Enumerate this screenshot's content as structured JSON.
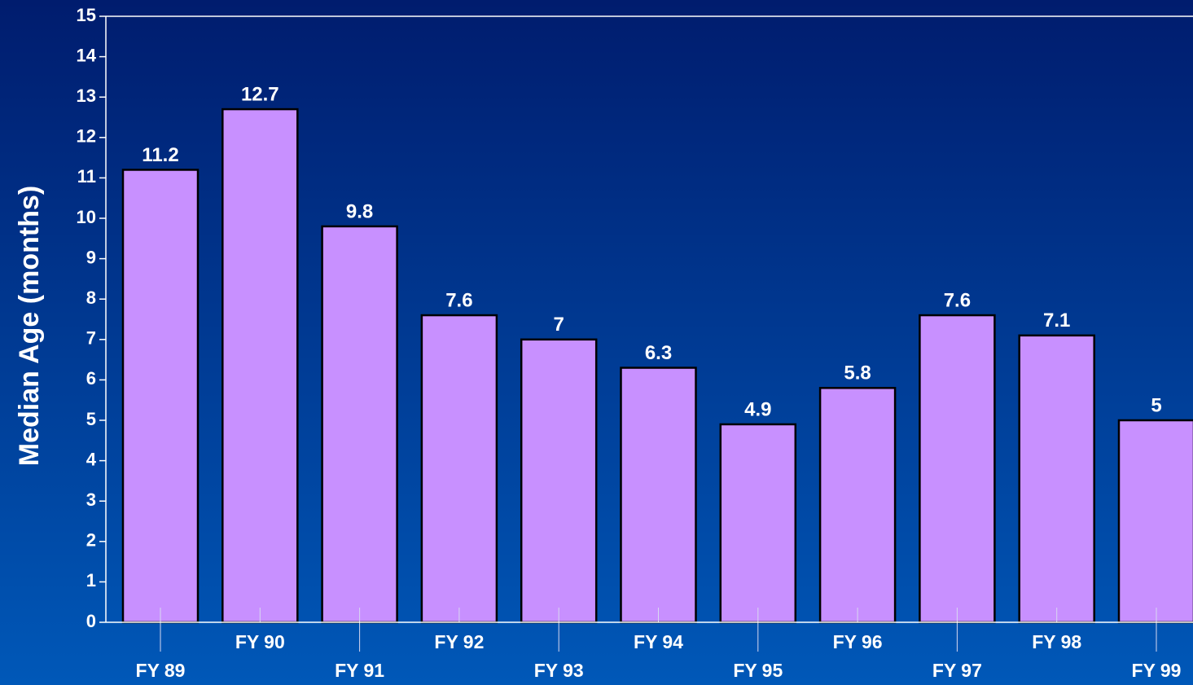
{
  "chart_data": {
    "type": "bar",
    "y_axis_label": "Median Age (months)",
    "categories": [
      "FY 89",
      "FY 90",
      "FY 91",
      "FY 92",
      "FY 93",
      "FY 94",
      "FY 95",
      "FY 96",
      "FY 97",
      "FY 98",
      "FY 99"
    ],
    "values": [
      11.2,
      12.7,
      9.8,
      7.6,
      7,
      6.3,
      4.9,
      5.8,
      7.6,
      7.1,
      5
    ],
    "color": "#c890ff",
    "ylim": [
      0,
      15
    ],
    "yticks": [
      0,
      1,
      2,
      3,
      4,
      5,
      6,
      7,
      8,
      9,
      10,
      11,
      12,
      13,
      14,
      15
    ],
    "grid": false
  }
}
